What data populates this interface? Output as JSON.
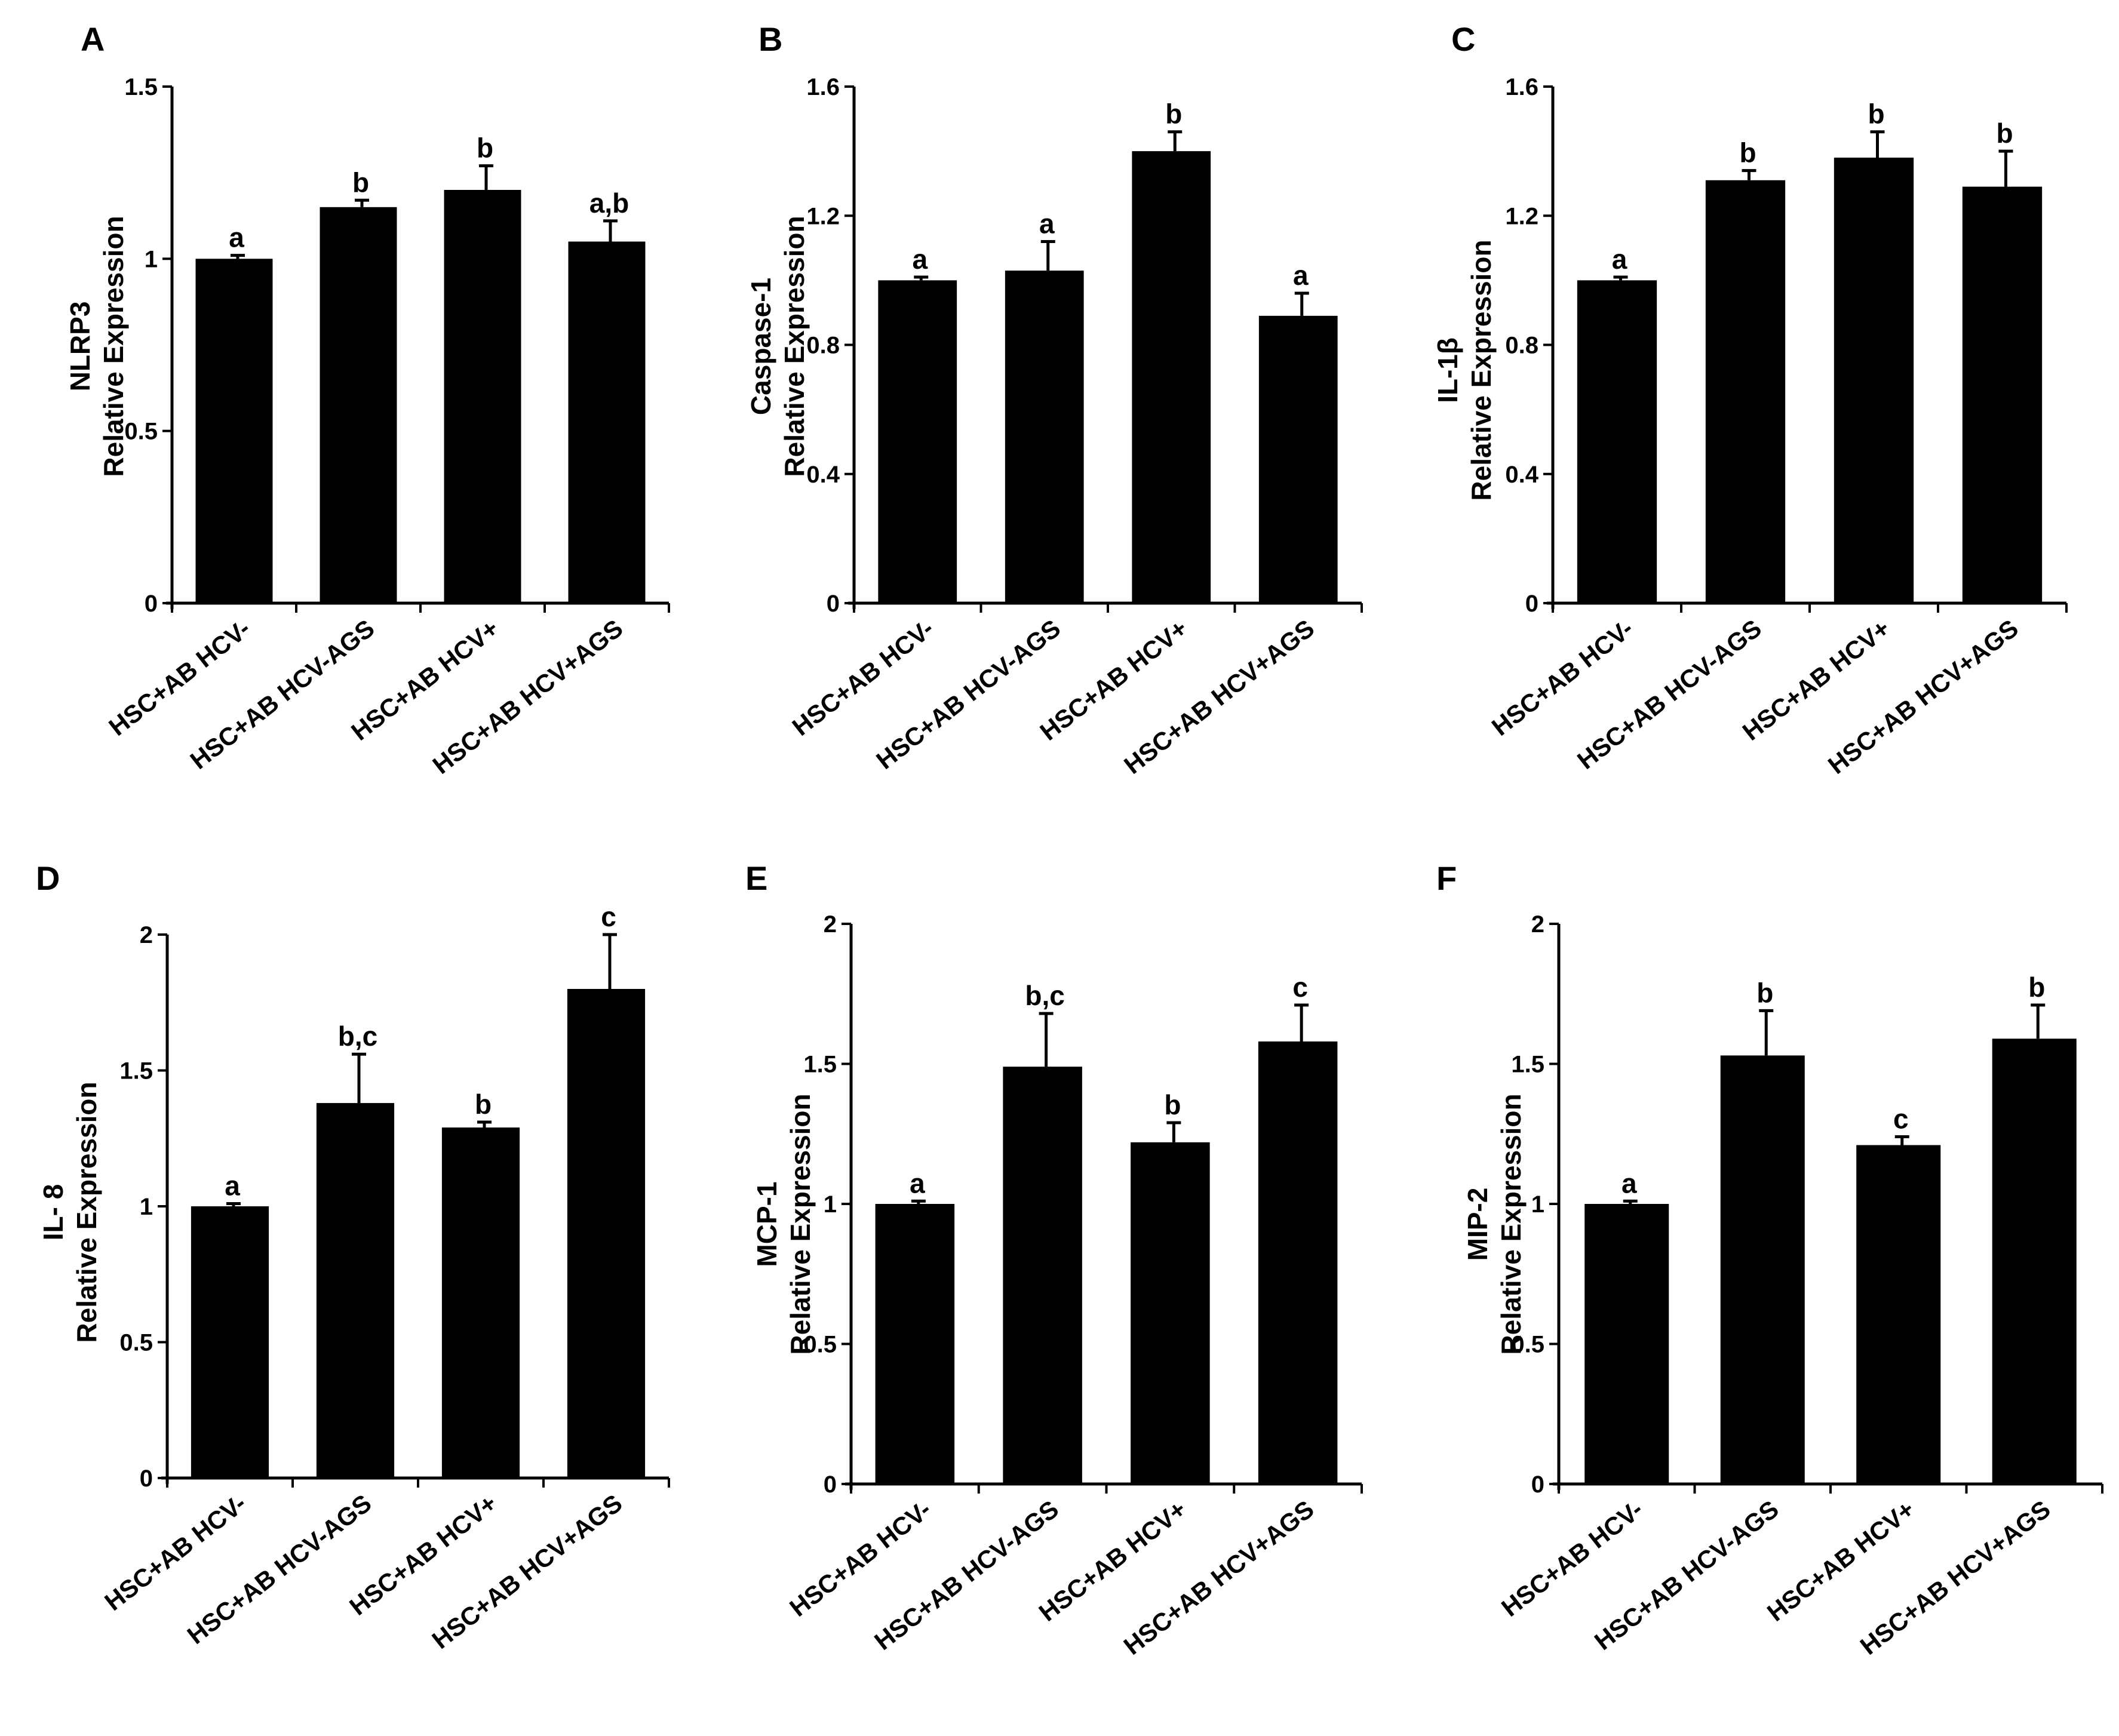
{
  "figure": {
    "categories": [
      "HSC+AB HCV-",
      "HSC+AB HCV-AGS",
      "HSC+AB HCV+",
      "HSC+AB HCV+AGS"
    ]
  },
  "chart_data": [
    {
      "type": "bar",
      "panel": "A",
      "ylabel": [
        "NLRP3",
        "Relative  Expression"
      ],
      "categories": [
        "HSC+AB HCV-",
        "HSC+AB HCV-AGS",
        "HSC+AB HCV+",
        "HSC+AB HCV+AGS"
      ],
      "values": [
        1.0,
        1.15,
        1.2,
        1.05
      ],
      "errors": [
        0.01,
        0.02,
        0.07,
        0.06
      ],
      "significance": [
        "a",
        "b",
        "b",
        "a,b"
      ],
      "ylim": [
        0,
        1.5
      ],
      "yticks": [
        0,
        0.5,
        1,
        1.5
      ],
      "ytick_labels": [
        "0",
        "0.5",
        "1",
        "1.5"
      ],
      "bar_color": "#000000"
    },
    {
      "type": "bar",
      "panel": "B",
      "ylabel": [
        "Caspase-1",
        "Relative  Expression"
      ],
      "categories": [
        "HSC+AB HCV-",
        "HSC+AB HCV-AGS",
        "HSC+AB HCV+",
        "HSC+AB HCV+AGS"
      ],
      "values": [
        1.0,
        1.03,
        1.4,
        0.89
      ],
      "errors": [
        0.01,
        0.09,
        0.06,
        0.07
      ],
      "significance": [
        "a",
        "a",
        "b",
        "a"
      ],
      "ylim": [
        0,
        1.6
      ],
      "yticks": [
        0,
        0.4,
        0.8,
        1.2,
        1.6
      ],
      "ytick_labels": [
        "0",
        "0.4",
        "0.8",
        "1.2",
        "1.6"
      ],
      "bar_color": "#000000"
    },
    {
      "type": "bar",
      "panel": "C",
      "ylabel": [
        "IL-1β",
        "Relative  Expression"
      ],
      "categories": [
        "HSC+AB HCV-",
        "HSC+AB HCV-AGS",
        "HSC+AB HCV+",
        "HSC+AB HCV+AGS"
      ],
      "values": [
        1.0,
        1.31,
        1.38,
        1.29
      ],
      "errors": [
        0.01,
        0.03,
        0.08,
        0.11
      ],
      "significance": [
        "a",
        "b",
        "b",
        "b"
      ],
      "ylim": [
        0,
        1.6
      ],
      "yticks": [
        0,
        0.4,
        0.8,
        1.2,
        1.6
      ],
      "ytick_labels": [
        "0",
        "0.4",
        "0.8",
        "1.2",
        "1.6"
      ],
      "bar_color": "#000000"
    },
    {
      "type": "bar",
      "panel": "D",
      "ylabel": [
        "IL- 8",
        "Relative  Expression"
      ],
      "categories": [
        "HSC+AB HCV-",
        "HSC+AB HCV-AGS",
        "HSC+AB HCV+",
        "HSC+AB HCV+AGS"
      ],
      "values": [
        1.0,
        1.38,
        1.29,
        1.8
      ],
      "errors": [
        0.01,
        0.18,
        0.02,
        0.2
      ],
      "significance": [
        "a",
        "b,c",
        "b",
        "c"
      ],
      "ylim": [
        0,
        2
      ],
      "yticks": [
        0,
        0.5,
        1,
        1.5,
        2
      ],
      "ytick_labels": [
        "0",
        "0.5",
        "1",
        "1.5",
        "2"
      ],
      "bar_color": "#000000"
    },
    {
      "type": "bar",
      "panel": "E",
      "ylabel": [
        "MCP-1",
        "Relative  Expression"
      ],
      "categories": [
        "HSC+AB HCV-",
        "HSC+AB HCV-AGS",
        "HSC+AB HCV+",
        "HSC+AB HCV+AGS"
      ],
      "values": [
        1.0,
        1.49,
        1.22,
        1.58
      ],
      "errors": [
        0.01,
        0.19,
        0.07,
        0.13
      ],
      "significance": [
        "a",
        "b,c",
        "b",
        "c"
      ],
      "ylim": [
        0,
        2
      ],
      "yticks": [
        0,
        0.5,
        1,
        1.5,
        2
      ],
      "ytick_labels": [
        "0",
        "0.5",
        "1",
        "1.5",
        "2"
      ],
      "bar_color": "#000000"
    },
    {
      "type": "bar",
      "panel": "F",
      "ylabel": [
        "MIP-2",
        "Relative  Expression"
      ],
      "categories": [
        "HSC+AB HCV-",
        "HSC+AB HCV-AGS",
        "HSC+AB HCV+",
        "HSC+AB HCV+AGS"
      ],
      "values": [
        1.0,
        1.53,
        1.21,
        1.59
      ],
      "errors": [
        0.01,
        0.16,
        0.03,
        0.12
      ],
      "significance": [
        "a",
        "b",
        "c",
        "b"
      ],
      "ylim": [
        0,
        2
      ],
      "yticks": [
        0,
        0.5,
        1,
        1.5,
        2
      ],
      "ytick_labels": [
        "0",
        "0.5",
        "1",
        "1.5",
        "2"
      ],
      "bar_color": "#000000"
    }
  ]
}
